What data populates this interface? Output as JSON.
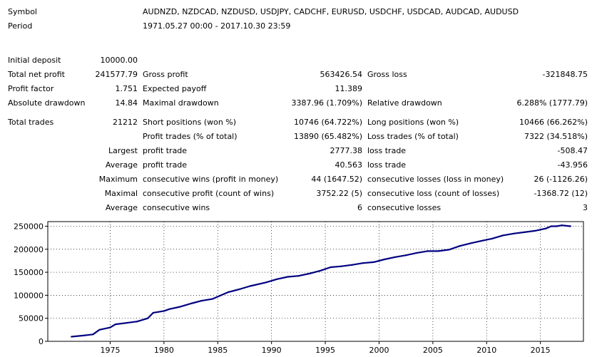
{
  "header": {
    "symbol_label": "Symbol",
    "symbol_value": "AUDNZD, NZDCAD, NZDUSD, USDJPY, CADCHF, EURUSD, USDCHF, USDCAD, AUDCAD, AUDUSD",
    "period_label": "Period",
    "period_value": "1971.05.27 00:00 - 2017.10.30 23:59"
  },
  "stats": {
    "initial_deposit_label": "Initial deposit",
    "initial_deposit": "10000.00",
    "total_net_profit_label": "Total net profit",
    "total_net_profit": "241577.79",
    "gross_profit_label": "Gross profit",
    "gross_profit": "563426.54",
    "gross_loss_label": "Gross loss",
    "gross_loss": "-321848.75",
    "profit_factor_label": "Profit factor",
    "profit_factor": "1.751",
    "expected_payoff_label": "Expected payoff",
    "expected_payoff": "11.389",
    "absolute_drawdown_label": "Absolute drawdown",
    "absolute_drawdown": "14.84",
    "maximal_drawdown_label": "Maximal drawdown",
    "maximal_drawdown": "3387.96 (1.709%)",
    "relative_drawdown_label": "Relative drawdown",
    "relative_drawdown": "6.288% (1777.79)",
    "total_trades_label": "Total trades",
    "total_trades": "21212",
    "short_positions_label": "Short positions (won %)",
    "short_positions": "10746 (64.722%)",
    "long_positions_label": "Long positions (won %)",
    "long_positions": "10466 (66.262%)",
    "profit_trades_label": "Profit trades (% of total)",
    "profit_trades": "13890 (65.482%)",
    "loss_trades_label": "Loss trades (% of total)",
    "loss_trades": "7322 (34.518%)",
    "largest_label": "Largest",
    "largest_profit_label": "profit trade",
    "largest_profit": "2777.38",
    "largest_loss_label": "loss trade",
    "largest_loss": "-508.47",
    "average_label": "Average",
    "average_profit_label": "profit trade",
    "average_profit": "40.563",
    "average_loss_label": "loss trade",
    "average_loss": "-43.956",
    "maximum_label": "Maximum",
    "max_consec_wins_label": "consecutive wins (profit in money)",
    "max_consec_wins": "44 (1647.52)",
    "max_consec_losses_label": "consecutive losses (loss in money)",
    "max_consec_losses": "26 (-1126.26)",
    "maximal_label": "Maximal",
    "maximal_consec_profit_label": "consecutive profit (count of wins)",
    "maximal_consec_profit": "3752.22 (5)",
    "maximal_consec_loss_label": "consecutive loss (count of losses)",
    "maximal_consec_loss": "-1368.72 (12)",
    "average2_label": "Average",
    "avg_consec_wins_label": "consecutive wins",
    "avg_consec_wins": "6",
    "avg_consec_losses_label": "consecutive losses",
    "avg_consec_losses": "3"
  },
  "chart_data": {
    "type": "line",
    "series": [
      {
        "color": "#000080",
        "x": [
          1971.4,
          1972.5,
          1973.4,
          1974.0,
          1975.0,
          1975.5,
          1976.5,
          1977.5,
          1978.5,
          1979.0,
          1980.0,
          1980.5,
          1981.5,
          1982.5,
          1983.5,
          1984.5,
          1985.3,
          1986.0,
          1987.0,
          1988.0,
          1989.5,
          1990.5,
          1991.5,
          1992.5,
          1993.5,
          1994.5,
          1995.5,
          1996.5,
          1997.5,
          1998.5,
          1999.5,
          2000.5,
          2001.5,
          2002.5,
          2003.5,
          2004.5,
          2005.5,
          2006.5,
          2007.5,
          2008.5,
          2009.5,
          2010.5,
          2011.5,
          2012.5,
          2013.5,
          2014.5,
          2015.5,
          2016.0,
          2016.5,
          2017.0,
          2017.8
        ],
        "values": [
          10000,
          12500,
          15000,
          25000,
          30000,
          37000,
          40000,
          43000,
          50000,
          62000,
          66000,
          70000,
          75000,
          82000,
          88000,
          92000,
          100000,
          107000,
          113000,
          120000,
          128000,
          135000,
          140000,
          142000,
          147000,
          153000,
          161000,
          163000,
          166000,
          170000,
          172000,
          178000,
          183000,
          187000,
          192000,
          196000,
          196000,
          199000,
          207000,
          213000,
          218000,
          223000,
          230000,
          234000,
          237000,
          240000,
          245000,
          250000,
          250000,
          252000,
          250000
        ]
      }
    ],
    "x_ticks": [
      1975,
      1980,
      1985,
      1990,
      1995,
      2000,
      2005,
      2010,
      2015
    ],
    "y_ticks": [
      0,
      50000,
      100000,
      150000,
      200000,
      250000
    ],
    "xlim": [
      1969.2,
      2019.0
    ],
    "ylim": [
      0,
      260000
    ],
    "grid": true,
    "title": "",
    "xlabel": "",
    "ylabel": ""
  }
}
